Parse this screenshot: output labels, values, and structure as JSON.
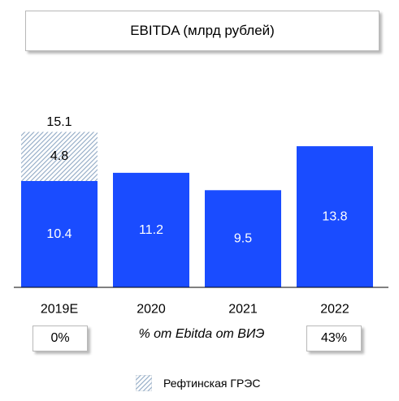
{
  "title": "EBITDA (млрд рублей)",
  "chart_data": {
    "type": "bar",
    "stacked": true,
    "categories": [
      "2019E",
      "2020",
      "2021",
      "2022"
    ],
    "series": [
      {
        "name": "",
        "color": "#1a4cff",
        "pattern": "solid",
        "values": [
          10.4,
          11.2,
          9.5,
          13.8
        ]
      },
      {
        "name": "Рефтинская ГРЭС",
        "color": "#a9bfd6",
        "pattern": "diagonal-hatch",
        "values": [
          4.8,
          null,
          null,
          null
        ]
      }
    ],
    "totals": [
      {
        "category": "2019E",
        "label": "15.1"
      }
    ],
    "ylim": [
      0,
      15.5
    ],
    "grid": false,
    "legend": "bottom-center"
  },
  "percent_row": {
    "left_value": "0%",
    "caption": "% от Ebitda от ВИЭ",
    "right_value": "43%"
  },
  "legend": {
    "label": "Рефтинская ГРЭС"
  }
}
